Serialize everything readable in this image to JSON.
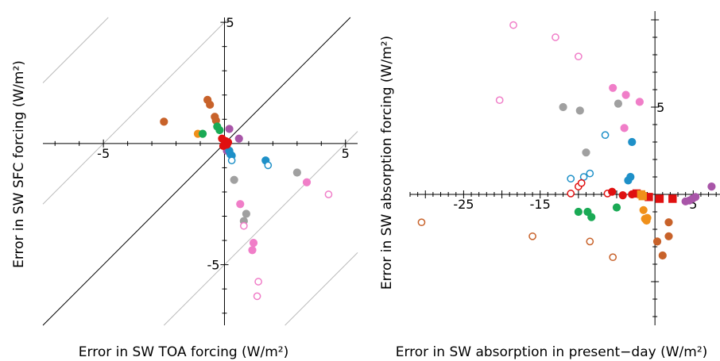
{
  "chart_data": [
    {
      "type": "scatter",
      "xlabel": "Error in SW TOA forcing (W/m²)",
      "ylabel": "Error in SW SFC forcing (W/m²)",
      "xlim": [
        -7.5,
        5.5
      ],
      "ylim": [
        -7.5,
        5.2
      ],
      "xticks": [
        -5,
        5
      ],
      "yticks": [
        5,
        -5
      ],
      "grid": false,
      "reference_lines": {
        "one_to_one": "black",
        "parallel_offsets": [
          -10,
          -5,
          5,
          10
        ]
      },
      "points": [
        {
          "x": -2.5,
          "y": 0.9,
          "color": "#c8622a",
          "filled": true
        },
        {
          "x": -0.7,
          "y": 1.8,
          "color": "#c8622a",
          "filled": true
        },
        {
          "x": -0.6,
          "y": 1.6,
          "color": "#c8622a",
          "filled": true
        },
        {
          "x": -0.4,
          "y": 1.1,
          "color": "#c8622a",
          "filled": true
        },
        {
          "x": -0.35,
          "y": 0.95,
          "color": "#c8622a",
          "filled": true
        },
        {
          "x": -1.1,
          "y": 0.4,
          "color": "#f0901a",
          "filled": true
        },
        {
          "x": -0.9,
          "y": 0.4,
          "color": "#1aaa55",
          "filled": true
        },
        {
          "x": -0.3,
          "y": 0.7,
          "color": "#1aaa55",
          "filled": true
        },
        {
          "x": -0.2,
          "y": 0.55,
          "color": "#1aaa55",
          "filled": true
        },
        {
          "x": 0.2,
          "y": 0.6,
          "color": "#a855a8",
          "filled": true
        },
        {
          "x": 0.6,
          "y": 0.2,
          "color": "#a855a8",
          "filled": true
        },
        {
          "x": 0.1,
          "y": -0.3,
          "color": "#a855a8",
          "filled": true
        },
        {
          "x": 0.2,
          "y": -0.3,
          "color": "#1e90c8",
          "filled": true
        },
        {
          "x": 0.25,
          "y": -0.45,
          "color": "#1e90c8",
          "filled": true
        },
        {
          "x": 0.3,
          "y": -0.5,
          "color": "#1e90c8",
          "filled": true
        },
        {
          "x": 0.3,
          "y": -0.7,
          "color": "#1e90c8",
          "filled": false
        },
        {
          "x": 1.7,
          "y": -0.7,
          "color": "#1e90c8",
          "filled": true
        },
        {
          "x": 1.8,
          "y": -0.9,
          "color": "#1e90c8",
          "filled": false
        },
        {
          "x": 0.4,
          "y": -1.5,
          "color": "#a0a0a0",
          "filled": true
        },
        {
          "x": 3.0,
          "y": -1.2,
          "color": "#a0a0a0",
          "filled": true
        },
        {
          "x": 0.9,
          "y": -2.9,
          "color": "#a0a0a0",
          "filled": true
        },
        {
          "x": 0.8,
          "y": -3.2,
          "color": "#a0a0a0",
          "filled": true
        },
        {
          "x": 0.65,
          "y": -2.5,
          "color": "#f07ec8",
          "filled": true
        },
        {
          "x": 3.4,
          "y": -1.6,
          "color": "#f07ec8",
          "filled": true
        },
        {
          "x": 4.3,
          "y": -2.1,
          "color": "#f07ec8",
          "filled": false
        },
        {
          "x": 0.8,
          "y": -3.4,
          "color": "#f07ec8",
          "filled": false
        },
        {
          "x": 1.2,
          "y": -4.1,
          "color": "#f07ec8",
          "filled": true
        },
        {
          "x": 1.15,
          "y": -4.4,
          "color": "#f07ec8",
          "filled": true
        },
        {
          "x": 1.4,
          "y": -5.7,
          "color": "#f07ec8",
          "filled": false
        },
        {
          "x": 1.35,
          "y": -6.3,
          "color": "#f07ec8",
          "filled": false
        },
        {
          "x": -0.1,
          "y": 0.2,
          "color": "#e01010",
          "filled": true
        },
        {
          "x": 0.05,
          "y": 0.1,
          "color": "#e01010",
          "filled": true
        },
        {
          "x": 0.1,
          "y": -0.05,
          "color": "#e01010",
          "filled": true
        },
        {
          "x": -0.05,
          "y": -0.1,
          "color": "#e01010",
          "filled": true
        },
        {
          "x": 0.15,
          "y": 0.05,
          "color": "#e01010",
          "filled": true
        }
      ]
    },
    {
      "type": "scatter",
      "xlabel": "Error in SW absorption in present−day (W/m²)",
      "ylabel": "Error in SW absorption forcing (W/m²)",
      "xlim": [
        -32,
        8.5
      ],
      "ylim": [
        -7.5,
        10.5
      ],
      "xticks": [
        -25,
        -15,
        5
      ],
      "yticks": [
        5
      ],
      "grid": false,
      "points": [
        {
          "x": -18.5,
          "y": 9.7,
          "color": "#f07ec8",
          "filled": false,
          "marker": "circle"
        },
        {
          "x": -13.0,
          "y": 9.0,
          "color": "#f07ec8",
          "filled": false,
          "marker": "circle"
        },
        {
          "x": -10.0,
          "y": 7.9,
          "color": "#f07ec8",
          "filled": false,
          "marker": "circle"
        },
        {
          "x": -20.3,
          "y": 5.4,
          "color": "#f07ec8",
          "filled": false,
          "marker": "circle"
        },
        {
          "x": -5.5,
          "y": 6.1,
          "color": "#f07ec8",
          "filled": true,
          "marker": "circle"
        },
        {
          "x": -3.8,
          "y": 5.7,
          "color": "#f07ec8",
          "filled": true,
          "marker": "circle"
        },
        {
          "x": -2.0,
          "y": 5.3,
          "color": "#f07ec8",
          "filled": true,
          "marker": "circle"
        },
        {
          "x": -4.0,
          "y": 3.8,
          "color": "#f07ec8",
          "filled": true,
          "marker": "circle"
        },
        {
          "x": -12.0,
          "y": 5.0,
          "color": "#a0a0a0",
          "filled": true,
          "marker": "circle"
        },
        {
          "x": -9.8,
          "y": 4.8,
          "color": "#a0a0a0",
          "filled": true,
          "marker": "circle"
        },
        {
          "x": -4.8,
          "y": 5.2,
          "color": "#a0a0a0",
          "filled": true,
          "marker": "circle"
        },
        {
          "x": -9.0,
          "y": 2.4,
          "color": "#a0a0a0",
          "filled": true,
          "marker": "circle"
        },
        {
          "x": -6.5,
          "y": 3.4,
          "color": "#1e90c8",
          "filled": false,
          "marker": "circle"
        },
        {
          "x": -3.0,
          "y": 3.0,
          "color": "#1e90c8",
          "filled": true,
          "marker": "circle"
        },
        {
          "x": -11.0,
          "y": 0.9,
          "color": "#1e90c8",
          "filled": false,
          "marker": "circle"
        },
        {
          "x": -9.3,
          "y": 1.0,
          "color": "#1e90c8",
          "filled": false,
          "marker": "circle"
        },
        {
          "x": -8.5,
          "y": 1.2,
          "color": "#1e90c8",
          "filled": false,
          "marker": "circle"
        },
        {
          "x": -3.5,
          "y": 0.8,
          "color": "#1e90c8",
          "filled": true,
          "marker": "circle"
        },
        {
          "x": -3.2,
          "y": 1.0,
          "color": "#1e90c8",
          "filled": true,
          "marker": "circle"
        },
        {
          "x": -10.0,
          "y": 0.45,
          "color": "#e01010",
          "filled": false,
          "marker": "circle"
        },
        {
          "x": -9.6,
          "y": 0.65,
          "color": "#e01010",
          "filled": false,
          "marker": "circle"
        },
        {
          "x": -11.0,
          "y": 0.05,
          "color": "#e01010",
          "filled": false,
          "marker": "circle"
        },
        {
          "x": -6.2,
          "y": 0.05,
          "color": "#e01010",
          "filled": false,
          "marker": "circle"
        },
        {
          "x": -5.6,
          "y": 0.15,
          "color": "#e01010",
          "filled": true,
          "marker": "circle"
        },
        {
          "x": -4.2,
          "y": -0.05,
          "color": "#e01010",
          "filled": true,
          "marker": "circle"
        },
        {
          "x": -3.0,
          "y": 0.0,
          "color": "#e01010",
          "filled": true,
          "marker": "circle"
        },
        {
          "x": -2.4,
          "y": 0.05,
          "color": "#e01010",
          "filled": true,
          "marker": "square"
        },
        {
          "x": -0.8,
          "y": -0.15,
          "color": "#e01010",
          "filled": true,
          "marker": "square"
        },
        {
          "x": 0.6,
          "y": -0.25,
          "color": "#e01010",
          "filled": true,
          "marker": "square"
        },
        {
          "x": 2.3,
          "y": -0.25,
          "color": "#e01010",
          "filled": true,
          "marker": "square"
        },
        {
          "x": -1.8,
          "y": 0.0,
          "color": "#f0901a",
          "filled": true,
          "marker": "square"
        },
        {
          "x": -1.6,
          "y": -0.1,
          "color": "#f0901a",
          "filled": true,
          "marker": "square"
        },
        {
          "x": -1.5,
          "y": -0.9,
          "color": "#f0901a",
          "filled": true,
          "marker": "circle"
        },
        {
          "x": -1.3,
          "y": -1.4,
          "color": "#f0901a",
          "filled": true,
          "marker": "circle"
        },
        {
          "x": -1.1,
          "y": -1.5,
          "color": "#f0901a",
          "filled": true,
          "marker": "circle"
        },
        {
          "x": -1.0,
          "y": -1.35,
          "color": "#f0901a",
          "filled": true,
          "marker": "circle"
        },
        {
          "x": -10.0,
          "y": -1.0,
          "color": "#1aaa55",
          "filled": true,
          "marker": "circle"
        },
        {
          "x": -8.8,
          "y": -1.0,
          "color": "#1aaa55",
          "filled": true,
          "marker": "circle"
        },
        {
          "x": -8.3,
          "y": -1.3,
          "color": "#1aaa55",
          "filled": true,
          "marker": "circle"
        },
        {
          "x": -5.0,
          "y": -0.75,
          "color": "#1aaa55",
          "filled": true,
          "marker": "circle"
        },
        {
          "x": 4.0,
          "y": -0.4,
          "color": "#a855a8",
          "filled": true,
          "marker": "circle"
        },
        {
          "x": 4.5,
          "y": -0.35,
          "color": "#a855a8",
          "filled": true,
          "marker": "circle"
        },
        {
          "x": 4.9,
          "y": -0.25,
          "color": "#a855a8",
          "filled": true,
          "marker": "circle"
        },
        {
          "x": 5.3,
          "y": -0.15,
          "color": "#a855a8",
          "filled": true,
          "marker": "circle"
        },
        {
          "x": 7.4,
          "y": 0.45,
          "color": "#a855a8",
          "filled": true,
          "marker": "circle"
        },
        {
          "x": -30.5,
          "y": -1.6,
          "color": "#c8622a",
          "filled": false,
          "marker": "circle"
        },
        {
          "x": -16.0,
          "y": -2.4,
          "color": "#c8622a",
          "filled": false,
          "marker": "circle"
        },
        {
          "x": -8.5,
          "y": -2.7,
          "color": "#c8622a",
          "filled": false,
          "marker": "circle"
        },
        {
          "x": -5.5,
          "y": -3.6,
          "color": "#c8622a",
          "filled": false,
          "marker": "circle"
        },
        {
          "x": 1.8,
          "y": -1.6,
          "color": "#c8622a",
          "filled": true,
          "marker": "circle"
        },
        {
          "x": 1.8,
          "y": -2.4,
          "color": "#c8622a",
          "filled": true,
          "marker": "circle"
        },
        {
          "x": 0.3,
          "y": -2.7,
          "color": "#c8622a",
          "filled": true,
          "marker": "circle"
        },
        {
          "x": 1.0,
          "y": -3.5,
          "color": "#c8622a",
          "filled": true,
          "marker": "circle"
        }
      ]
    }
  ]
}
